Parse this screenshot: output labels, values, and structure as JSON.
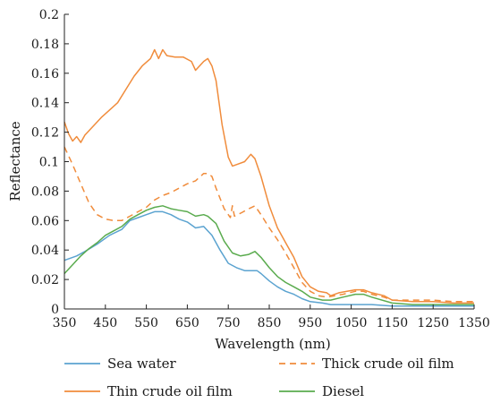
{
  "chart_data": {
    "type": "line",
    "title": "",
    "xlabel": "Wavelength (nm)",
    "ylabel": "Reflectance",
    "xlim": [
      350,
      1350
    ],
    "ylim": [
      0,
      0.2
    ],
    "xticks": [
      350,
      450,
      550,
      650,
      750,
      850,
      950,
      1050,
      1150,
      1250,
      1350
    ],
    "xtick_labels": [
      "350",
      "450",
      "550",
      "650",
      "750",
      "850",
      "950",
      "1050",
      "1150",
      "1250",
      "1350"
    ],
    "yticks": [
      0,
      0.02,
      0.04,
      0.06,
      0.08,
      0.1,
      0.12,
      0.14,
      0.16,
      0.18,
      0.2
    ],
    "ytick_labels": [
      "0",
      "0.02",
      "0.04",
      "0.06",
      "0.08",
      "0.1",
      "0.12",
      "0.14",
      "0.16",
      "0.18",
      "0.2"
    ],
    "grid": false,
    "legend_position": "bottom",
    "series": [
      {
        "name": "Sea water",
        "color": "#5ba3d0",
        "dash": "solid",
        "points": [
          [
            350,
            0.033
          ],
          [
            380,
            0.036
          ],
          [
            400,
            0.039
          ],
          [
            430,
            0.044
          ],
          [
            460,
            0.05
          ],
          [
            490,
            0.054
          ],
          [
            510,
            0.06
          ],
          [
            530,
            0.062
          ],
          [
            550,
            0.064
          ],
          [
            570,
            0.066
          ],
          [
            590,
            0.066
          ],
          [
            610,
            0.064
          ],
          [
            630,
            0.061
          ],
          [
            650,
            0.059
          ],
          [
            670,
            0.055
          ],
          [
            690,
            0.056
          ],
          [
            710,
            0.05
          ],
          [
            730,
            0.04
          ],
          [
            750,
            0.031
          ],
          [
            770,
            0.028
          ],
          [
            790,
            0.026
          ],
          [
            810,
            0.026
          ],
          [
            820,
            0.026
          ],
          [
            830,
            0.024
          ],
          [
            850,
            0.019
          ],
          [
            870,
            0.015
          ],
          [
            890,
            0.012
          ],
          [
            910,
            0.01
          ],
          [
            930,
            0.007
          ],
          [
            950,
            0.005
          ],
          [
            980,
            0.004
          ],
          [
            1000,
            0.003
          ],
          [
            1050,
            0.003
          ],
          [
            1080,
            0.003
          ],
          [
            1100,
            0.003
          ],
          [
            1150,
            0.002
          ],
          [
            1200,
            0.002
          ],
          [
            1250,
            0.002
          ],
          [
            1300,
            0.002
          ],
          [
            1350,
            0.002
          ]
        ]
      },
      {
        "name": "Thick crude oil film",
        "color": "#f08c3c",
        "dash": "dashed",
        "points": [
          [
            350,
            0.11
          ],
          [
            370,
            0.098
          ],
          [
            390,
            0.085
          ],
          [
            410,
            0.072
          ],
          [
            430,
            0.064
          ],
          [
            450,
            0.061
          ],
          [
            470,
            0.06
          ],
          [
            490,
            0.06
          ],
          [
            510,
            0.063
          ],
          [
            530,
            0.066
          ],
          [
            550,
            0.069
          ],
          [
            570,
            0.074
          ],
          [
            590,
            0.077
          ],
          [
            610,
            0.079
          ],
          [
            630,
            0.082
          ],
          [
            650,
            0.085
          ],
          [
            670,
            0.087
          ],
          [
            690,
            0.092
          ],
          [
            700,
            0.092
          ],
          [
            710,
            0.09
          ],
          [
            720,
            0.082
          ],
          [
            740,
            0.068
          ],
          [
            755,
            0.062
          ],
          [
            760,
            0.07
          ],
          [
            765,
            0.063
          ],
          [
            780,
            0.065
          ],
          [
            800,
            0.068
          ],
          [
            815,
            0.07
          ],
          [
            830,
            0.064
          ],
          [
            850,
            0.055
          ],
          [
            870,
            0.047
          ],
          [
            890,
            0.038
          ],
          [
            910,
            0.028
          ],
          [
            930,
            0.018
          ],
          [
            950,
            0.012
          ],
          [
            970,
            0.009
          ],
          [
            990,
            0.008
          ],
          [
            1010,
            0.009
          ],
          [
            1030,
            0.01
          ],
          [
            1060,
            0.012
          ],
          [
            1080,
            0.012
          ],
          [
            1100,
            0.01
          ],
          [
            1130,
            0.008
          ],
          [
            1150,
            0.006
          ],
          [
            1200,
            0.006
          ],
          [
            1250,
            0.006
          ],
          [
            1300,
            0.005
          ],
          [
            1350,
            0.005
          ]
        ]
      },
      {
        "name": "Thin crude oil film",
        "color": "#f08c3c",
        "dash": "solid",
        "points": [
          [
            350,
            0.127
          ],
          [
            360,
            0.119
          ],
          [
            370,
            0.114
          ],
          [
            380,
            0.117
          ],
          [
            390,
            0.113
          ],
          [
            400,
            0.118
          ],
          [
            420,
            0.124
          ],
          [
            440,
            0.13
          ],
          [
            460,
            0.135
          ],
          [
            480,
            0.14
          ],
          [
            500,
            0.149
          ],
          [
            520,
            0.158
          ],
          [
            540,
            0.165
          ],
          [
            560,
            0.17
          ],
          [
            570,
            0.176
          ],
          [
            580,
            0.17
          ],
          [
            590,
            0.176
          ],
          [
            600,
            0.172
          ],
          [
            620,
            0.171
          ],
          [
            640,
            0.171
          ],
          [
            660,
            0.168
          ],
          [
            670,
            0.162
          ],
          [
            690,
            0.168
          ],
          [
            700,
            0.17
          ],
          [
            710,
            0.165
          ],
          [
            720,
            0.155
          ],
          [
            735,
            0.125
          ],
          [
            750,
            0.103
          ],
          [
            760,
            0.097
          ],
          [
            770,
            0.098
          ],
          [
            790,
            0.1
          ],
          [
            805,
            0.105
          ],
          [
            815,
            0.102
          ],
          [
            830,
            0.09
          ],
          [
            850,
            0.07
          ],
          [
            870,
            0.055
          ],
          [
            890,
            0.045
          ],
          [
            910,
            0.035
          ],
          [
            930,
            0.022
          ],
          [
            950,
            0.015
          ],
          [
            970,
            0.012
          ],
          [
            990,
            0.011
          ],
          [
            1000,
            0.009
          ],
          [
            1020,
            0.011
          ],
          [
            1040,
            0.012
          ],
          [
            1060,
            0.013
          ],
          [
            1080,
            0.013
          ],
          [
            1100,
            0.011
          ],
          [
            1130,
            0.009
          ],
          [
            1150,
            0.006
          ],
          [
            1200,
            0.005
          ],
          [
            1250,
            0.005
          ],
          [
            1300,
            0.004
          ],
          [
            1350,
            0.004
          ]
        ]
      },
      {
        "name": "Diesel",
        "color": "#5aab4e",
        "dash": "solid",
        "points": [
          [
            350,
            0.024
          ],
          [
            370,
            0.03
          ],
          [
            390,
            0.036
          ],
          [
            410,
            0.041
          ],
          [
            430,
            0.045
          ],
          [
            450,
            0.05
          ],
          [
            470,
            0.053
          ],
          [
            490,
            0.056
          ],
          [
            510,
            0.061
          ],
          [
            530,
            0.064
          ],
          [
            550,
            0.067
          ],
          [
            570,
            0.069
          ],
          [
            590,
            0.07
          ],
          [
            610,
            0.068
          ],
          [
            630,
            0.067
          ],
          [
            650,
            0.066
          ],
          [
            670,
            0.063
          ],
          [
            690,
            0.064
          ],
          [
            700,
            0.063
          ],
          [
            720,
            0.058
          ],
          [
            740,
            0.046
          ],
          [
            760,
            0.038
          ],
          [
            780,
            0.036
          ],
          [
            800,
            0.037
          ],
          [
            815,
            0.039
          ],
          [
            830,
            0.035
          ],
          [
            850,
            0.028
          ],
          [
            870,
            0.022
          ],
          [
            890,
            0.018
          ],
          [
            910,
            0.015
          ],
          [
            930,
            0.012
          ],
          [
            950,
            0.008
          ],
          [
            980,
            0.006
          ],
          [
            1000,
            0.006
          ],
          [
            1030,
            0.008
          ],
          [
            1060,
            0.01
          ],
          [
            1080,
            0.01
          ],
          [
            1100,
            0.008
          ],
          [
            1150,
            0.004
          ],
          [
            1200,
            0.003
          ],
          [
            1250,
            0.003
          ],
          [
            1300,
            0.003
          ],
          [
            1350,
            0.003
          ]
        ]
      }
    ],
    "legend": [
      {
        "name": "Sea water",
        "color": "#5ba3d0",
        "dash": "solid"
      },
      {
        "name": "Thick crude oil film",
        "color": "#f08c3c",
        "dash": "dashed"
      },
      {
        "name": "Thin crude oil film",
        "color": "#f08c3c",
        "dash": "solid"
      },
      {
        "name": "Diesel",
        "color": "#5aab4e",
        "dash": "solid"
      }
    ]
  }
}
